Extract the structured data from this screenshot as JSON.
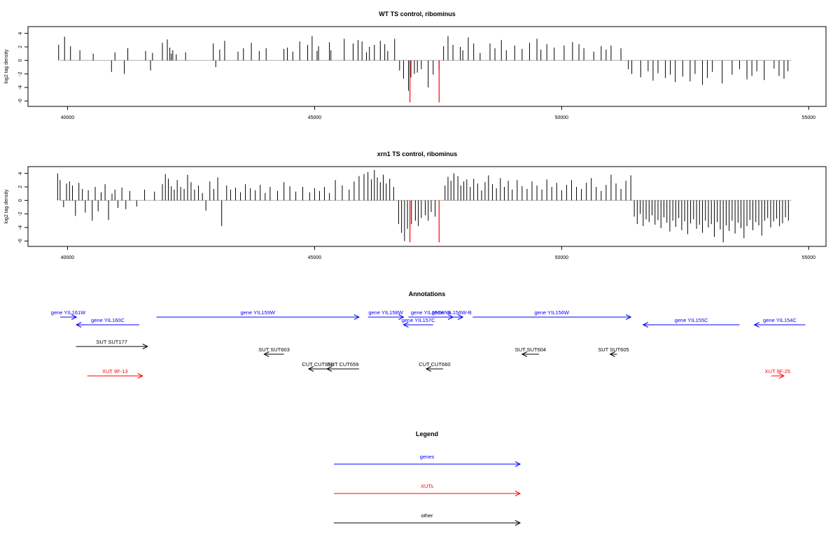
{
  "colors": {
    "genes": "#0000ff",
    "xuts": "#ff0000",
    "other": "#000000",
    "highlight": "#ff0000",
    "baseline": "#b0b0b0"
  },
  "chart_data": [
    {
      "type": "bar",
      "title": "WT TS control, ribominus",
      "ylabel": "log2 tag density",
      "xlim": [
        39200,
        55350
      ],
      "ylim": [
        -6.8,
        5
      ],
      "xticks": [
        40000,
        45000,
        50000,
        55000
      ],
      "xtick_labels": [
        "40000",
        "45000",
        "50000",
        "55000"
      ],
      "yticks": [
        4,
        2,
        0,
        -2,
        -4,
        -6
      ],
      "ytick_labels": [
        "4",
        "2",
        "0",
        "-2",
        "-4",
        "-6"
      ],
      "x": [
        39820,
        39940,
        40060,
        40250,
        40520,
        40890,
        40960,
        41150,
        41220,
        41580,
        41680,
        41720,
        41920,
        42020,
        42070,
        42100,
        42130,
        42200,
        42390,
        42950,
        43000,
        43080,
        43180,
        43450,
        43560,
        43720,
        43880,
        44020,
        44380,
        44450,
        44560,
        44700,
        44860,
        44950,
        45050,
        45080,
        45300,
        45330,
        45600,
        45780,
        45880,
        45960,
        46050,
        46110,
        46210,
        46330,
        46420,
        46480,
        46620,
        46720,
        46800,
        46900,
        46950,
        47020,
        47080,
        47160,
        47300,
        47400,
        47520,
        47610,
        47700,
        47800,
        47950,
        48000,
        48110,
        48220,
        48350,
        48550,
        48650,
        48780,
        48880,
        49050,
        49200,
        49350,
        49500,
        49580,
        49700,
        49850,
        50050,
        50220,
        50350,
        50450,
        50650,
        50800,
        50900,
        51000,
        51200,
        51350,
        51420,
        51600,
        51750,
        51850,
        51950,
        52100,
        52200,
        52300,
        52450,
        52600,
        52700,
        52850,
        52950,
        53050,
        53250,
        53450,
        53600,
        53750,
        53850,
        53950,
        54100,
        54300,
        54400,
        54500,
        54580
      ],
      "values": [
        2.3,
        3.5,
        2.1,
        1.5,
        1.0,
        -1.7,
        1.2,
        -2.0,
        1.8,
        1.4,
        -1.5,
        1.1,
        2.6,
        3.1,
        1.9,
        1.0,
        1.5,
        0.9,
        1.2,
        2.5,
        -1.0,
        1.6,
        2.9,
        1.3,
        1.8,
        2.6,
        1.4,
        1.8,
        1.7,
        1.9,
        1.3,
        2.8,
        2.3,
        3.6,
        1.4,
        2.1,
        2.7,
        1.5,
        3.2,
        2.5,
        3.0,
        2.8,
        1.2,
        2.0,
        2.3,
        2.9,
        2.4,
        1.4,
        3.2,
        -1.5,
        -2.7,
        -4.5,
        -2.5,
        -2.0,
        -1.8,
        -1.3,
        -4.0,
        -2.1,
        -1.4,
        2.1,
        3.6,
        2.3,
        2.0,
        1.5,
        3.4,
        2.5,
        1.1,
        2.5,
        1.8,
        3.0,
        1.5,
        2.2,
        1.7,
        2.6,
        3.2,
        1.6,
        2.4,
        1.9,
        2.2,
        2.7,
        2.4,
        1.8,
        1.3,
        2.1,
        1.6,
        2.2,
        1.8,
        -1.3,
        -2.0,
        -2.5,
        -1.6,
        -3.0,
        -1.9,
        -2.6,
        -2.1,
        -3.2,
        -2.4,
        -3.1,
        -2.0,
        -3.6,
        -2.6,
        -1.7,
        -3.4,
        -2.1,
        -1.3,
        -2.8,
        -2.3,
        -1.6,
        -2.9,
        -1.2,
        -2.3,
        -2.7,
        -1.6
      ],
      "highlight_x": [
        46930,
        47520
      ],
      "highlight_values": [
        -6.2,
        -6.2
      ]
    },
    {
      "type": "bar",
      "title": "xrn1 TS control, ribominus",
      "ylabel": "log2 tag density",
      "xlim": [
        39200,
        55350
      ],
      "ylim": [
        -6.8,
        5
      ],
      "xticks": [
        40000,
        45000,
        50000,
        55000
      ],
      "xtick_labels": [
        "40000",
        "45000",
        "50000",
        "55000"
      ],
      "yticks": [
        4,
        2,
        0,
        -2,
        -4,
        -6
      ],
      "ytick_labels": [
        "4",
        "2",
        "0",
        "-2",
        "-4",
        "-6"
      ],
      "x": [
        39800,
        39850,
        39920,
        39980,
        40040,
        40100,
        40160,
        40230,
        40300,
        40360,
        40420,
        40500,
        40560,
        40620,
        40680,
        40760,
        40830,
        40900,
        40960,
        41020,
        41100,
        41180,
        41260,
        41400,
        41560,
        41760,
        41920,
        41980,
        42040,
        42100,
        42160,
        42220,
        42290,
        42360,
        42430,
        42500,
        42570,
        42650,
        42730,
        42800,
        42880,
        42960,
        43040,
        43120,
        43220,
        43300,
        43400,
        43500,
        43600,
        43700,
        43800,
        43900,
        44000,
        44100,
        44250,
        44380,
        44500,
        44620,
        44760,
        44900,
        45000,
        45100,
        45200,
        45300,
        45420,
        45560,
        45700,
        45800,
        45900,
        46000,
        46080,
        46150,
        46210,
        46270,
        46330,
        46390,
        46450,
        46520,
        46600,
        46700,
        46760,
        46820,
        46880,
        46960,
        47040,
        47100,
        47160,
        47240,
        47300,
        47360,
        47440,
        47640,
        47700,
        47760,
        47820,
        47900,
        47960,
        48020,
        48080,
        48150,
        48220,
        48300,
        48380,
        48450,
        48520,
        48600,
        48680,
        48760,
        48840,
        48920,
        49000,
        49100,
        49200,
        49300,
        49400,
        49500,
        49600,
        49700,
        49800,
        49900,
        50000,
        50100,
        50200,
        50300,
        50400,
        50500,
        50600,
        50700,
        50800,
        50900,
        51000,
        51100,
        51200,
        51300,
        51400,
        51470,
        51530,
        51590,
        51650,
        51710,
        51770,
        51830,
        51890,
        51950,
        52010,
        52070,
        52130,
        52190,
        52250,
        52310,
        52370,
        52430,
        52490,
        52550,
        52610,
        52670,
        52730,
        52790,
        52850,
        52910,
        52970,
        53030,
        53090,
        53150,
        53210,
        53270,
        53330,
        53390,
        53450,
        53510,
        53570,
        53630,
        53690,
        53750,
        53810,
        53870,
        53930,
        53990,
        54050,
        54110,
        54170,
        54230,
        54290,
        54350,
        54410,
        54470,
        54530,
        54590
      ],
      "values": [
        4.0,
        3.0,
        -1.0,
        2.5,
        2.8,
        2.2,
        -2.3,
        2.6,
        1.7,
        -1.8,
        1.5,
        -3.0,
        2.0,
        -1.6,
        1.2,
        2.4,
        -2.9,
        1.0,
        1.6,
        -1.1,
        1.9,
        -1.3,
        1.4,
        -0.9,
        1.6,
        1.3,
        2.4,
        3.9,
        3.2,
        2.1,
        1.6,
        3.0,
        2.0,
        1.7,
        3.8,
        2.7,
        1.6,
        2.2,
        1.1,
        -1.5,
        2.8,
        1.7,
        3.4,
        -3.8,
        2.2,
        1.6,
        1.9,
        1.2,
        2.4,
        1.8,
        1.5,
        2.3,
        1.1,
        2.0,
        1.4,
        2.7,
        2.1,
        1.3,
        2.0,
        1.2,
        1.8,
        1.4,
        2.0,
        1.1,
        3.0,
        2.2,
        1.6,
        2.8,
        3.6,
        3.9,
        4.2,
        3.1,
        4.5,
        3.4,
        2.7,
        3.8,
        2.5,
        3.2,
        2.0,
        -3.5,
        -4.8,
        -6.0,
        -4.2,
        -3.5,
        -3.0,
        -3.8,
        -2.6,
        -2.2,
        -3.0,
        -1.7,
        -2.4,
        2.2,
        3.5,
        2.9,
        4.0,
        3.6,
        2.2,
        2.8,
        3.1,
        2.0,
        3.2,
        2.5,
        1.5,
        2.7,
        3.7,
        2.4,
        1.8,
        3.3,
        2.0,
        2.9,
        1.6,
        3.0,
        2.1,
        1.7,
        2.8,
        2.2,
        1.6,
        3.1,
        2.0,
        2.6,
        1.5,
        2.3,
        3.0,
        2.0,
        1.7,
        2.6,
        3.3,
        2.0,
        1.4,
        2.3,
        3.8,
        2.5,
        1.7,
        2.9,
        3.7,
        -2.4,
        -3.5,
        -2.0,
        -3.8,
        -2.8,
        -3.2,
        -2.2,
        -3.6,
        -2.9,
        -4.1,
        -2.5,
        -3.3,
        -4.6,
        -3.0,
        -3.9,
        -2.6,
        -4.4,
        -3.1,
        -5.0,
        -3.4,
        -2.8,
        -4.2,
        -3.6,
        -4.8,
        -3.0,
        -4.0,
        -3.5,
        -5.4,
        -3.2,
        -4.3,
        -6.2,
        -3.7,
        -4.5,
        -3.0,
        -4.9,
        -3.3,
        -4.1,
        -5.6,
        -3.8,
        -2.9,
        -4.4,
        -3.2,
        -3.7,
        -5.2,
        -3.0,
        -2.6,
        -4.0,
        -3.1,
        -2.7,
        -3.8,
        -3.4,
        -2.5,
        -3.0
      ],
      "highlight_x": [
        46930,
        47520
      ],
      "highlight_values": [
        -6.2,
        -6.2
      ]
    }
  ],
  "annotations": {
    "title": "Annotations",
    "items": [
      {
        "label": "gene YIL161W",
        "kind": "gene",
        "x1": 39850,
        "x2": 40180,
        "dir": "right",
        "row": 0
      },
      {
        "label": "gene YIL160C",
        "kind": "gene",
        "x1": 40180,
        "x2": 41450,
        "dir": "left",
        "row": 1
      },
      {
        "label": "gene YIL159W",
        "kind": "gene",
        "x1": 41800,
        "x2": 45900,
        "dir": "right",
        "row": 0
      },
      {
        "label": "gene YIL158W",
        "kind": "gene",
        "x1": 46080,
        "x2": 46800,
        "dir": "right",
        "row": 0
      },
      {
        "label": "gene YIL157C",
        "kind": "gene",
        "x1": 46800,
        "x2": 47400,
        "dir": "left",
        "row": 1
      },
      {
        "label": "gene YIL156W-A",
        "kind": "gene",
        "x1": 46900,
        "x2": 47800,
        "dir": "right",
        "row": 0
      },
      {
        "label": "gene YIL156W-B",
        "kind": "gene",
        "x1": 47550,
        "x2": 48000,
        "dir": "right",
        "row": 0
      },
      {
        "label": "gene YIL156W",
        "kind": "gene",
        "x1": 48200,
        "x2": 51400,
        "dir": "right",
        "row": 0
      },
      {
        "label": "gene YIL155C",
        "kind": "gene",
        "x1": 51650,
        "x2": 53600,
        "dir": "left",
        "row": 1
      },
      {
        "label": "gene YIL154C",
        "kind": "gene",
        "x1": 53900,
        "x2": 54930,
        "dir": "left",
        "row": 1
      },
      {
        "label": "SUT SUT177",
        "kind": "other",
        "x1": 40170,
        "x2": 41620,
        "dir": "right",
        "row": 2
      },
      {
        "label": "SUT SUT603",
        "kind": "other",
        "x1": 43980,
        "x2": 44380,
        "dir": "left",
        "row": 3
      },
      {
        "label": "SUT SUT604",
        "kind": "other",
        "x1": 49200,
        "x2": 49540,
        "dir": "left",
        "row": 3
      },
      {
        "label": "SUT SUT605",
        "kind": "other",
        "x1": 50980,
        "x2": 51120,
        "dir": "left",
        "row": 3
      },
      {
        "label": "CUT CUT658",
        "kind": "other",
        "x1": 44880,
        "x2": 45250,
        "dir": "left",
        "row": 4
      },
      {
        "label": "SUT CUT659",
        "kind": "other",
        "x1": 45250,
        "x2": 45900,
        "dir": "left",
        "row": 4
      },
      {
        "label": "CUT CUT660",
        "kind": "other",
        "x1": 47260,
        "x2": 47600,
        "dir": "left",
        "row": 4
      },
      {
        "label": "XUT 9F-13",
        "kind": "xut",
        "x1": 40400,
        "x2": 41520,
        "dir": "right",
        "row": 5
      },
      {
        "label": "XUT 9F-25",
        "kind": "xut",
        "x1": 54240,
        "x2": 54500,
        "dir": "right",
        "row": 5
      }
    ]
  },
  "legend": {
    "title": "Legend",
    "items": [
      {
        "label": "genes",
        "kind": "gene"
      },
      {
        "label": "XUTs",
        "kind": "xut"
      },
      {
        "label": "other",
        "kind": "other"
      }
    ]
  }
}
